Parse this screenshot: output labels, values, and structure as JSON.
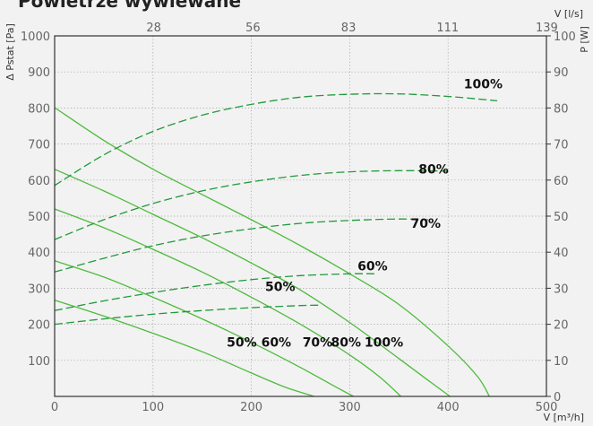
{
  "chart_data": {
    "type": "line",
    "title": "Powietrze wywiewane",
    "xlabel": "V [m³/h]",
    "x2label": "V [l/s]",
    "ylabel": "Δ Pstat [Pa]",
    "y2label": "P [W]",
    "xlim": [
      0,
      500
    ],
    "ylim": [
      0,
      1000
    ],
    "y2lim": [
      0,
      100
    ],
    "x_ticks": [
      0,
      100,
      200,
      300,
      400,
      500
    ],
    "x2_ticks": [
      28,
      56,
      83,
      111,
      139
    ],
    "y_ticks": [
      100,
      200,
      300,
      400,
      500,
      600,
      700,
      800,
      900,
      1000
    ],
    "y2_ticks": [
      0,
      10,
      20,
      30,
      40,
      50,
      60,
      70,
      80,
      90,
      100
    ],
    "grid": true,
    "colors": {
      "curve": "#4dbb3c",
      "power": "#219a3a",
      "frame": "#333333",
      "grid": "#9a9a9a"
    },
    "pressure_series": [
      {
        "name": "50%",
        "x": [
          0,
          50,
          100,
          150,
          200,
          235,
          264
        ],
        "y": [
          267,
          223,
          175,
          124,
          65,
          25,
          0
        ]
      },
      {
        "name": "60%",
        "x": [
          0,
          50,
          100,
          150,
          200,
          250,
          280,
          304
        ],
        "y": [
          376,
          331,
          275,
          215,
          150,
          80,
          35,
          0
        ]
      },
      {
        "name": "70%",
        "x": [
          0,
          50,
          100,
          150,
          200,
          250,
          300,
          330,
          352
        ],
        "y": [
          520,
          468,
          408,
          345,
          275,
          200,
          115,
          55,
          0
        ]
      },
      {
        "name": "80%",
        "x": [
          0,
          50,
          100,
          150,
          200,
          250,
          300,
          350,
          382,
          402
        ],
        "y": [
          630,
          570,
          505,
          440,
          370,
          295,
          205,
          105,
          40,
          0
        ]
      },
      {
        "name": "100%",
        "x": [
          0,
          50,
          100,
          150,
          200,
          250,
          300,
          350,
          400,
          430,
          442
        ],
        "y": [
          801,
          710,
          630,
          560,
          490,
          418,
          340,
          255,
          140,
          55,
          0
        ]
      }
    ],
    "power_series": [
      {
        "name": "50%",
        "x": [
          0,
          50,
          100,
          150,
          200,
          250,
          270
        ],
        "y": [
          20,
          21.5,
          22.8,
          23.8,
          24.6,
          25.2,
          25.3
        ]
      },
      {
        "name": "60%",
        "x": [
          0,
          50,
          100,
          150,
          200,
          250,
          300,
          325
        ],
        "y": [
          23.8,
          26.5,
          28.8,
          30.8,
          32.4,
          33.5,
          34.0,
          34.0
        ]
      },
      {
        "name": "70%",
        "x": [
          0,
          50,
          100,
          150,
          200,
          250,
          300,
          350,
          380
        ],
        "y": [
          34.5,
          38.3,
          41.8,
          44.5,
          46.5,
          48.0,
          48.8,
          49.2,
          49.0
        ]
      },
      {
        "name": "80%",
        "x": [
          0,
          50,
          100,
          150,
          200,
          250,
          300,
          350,
          400
        ],
        "y": [
          43.5,
          49.0,
          53.5,
          57.0,
          59.5,
          61.3,
          62.3,
          62.6,
          62.5
        ]
      },
      {
        "name": "100%",
        "x": [
          0,
          50,
          100,
          150,
          200,
          250,
          300,
          350,
          400,
          450
        ],
        "y": [
          58.5,
          67.0,
          73.5,
          78.0,
          81.0,
          83.0,
          83.8,
          83.9,
          83.2,
          82.0
        ]
      }
    ],
    "labels": [
      "100%",
      "80%",
      "70%",
      "60%",
      "50%",
      "50%",
      "60%",
      "70%",
      "80%",
      "100%"
    ]
  }
}
